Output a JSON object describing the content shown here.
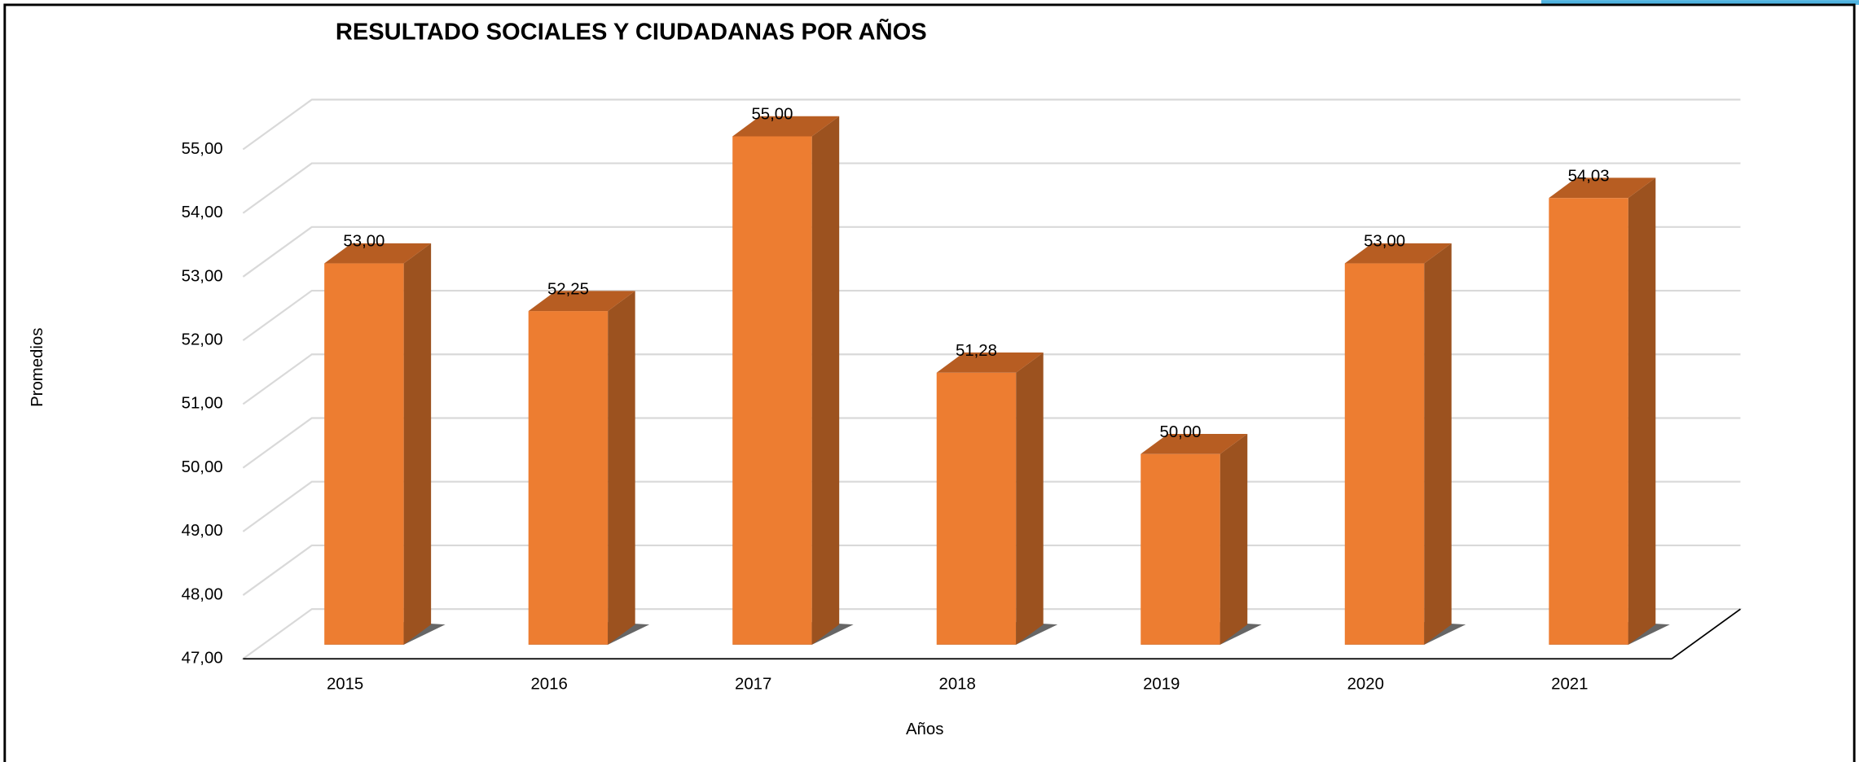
{
  "chart_data": {
    "type": "bar3d",
    "title": "RESULTADO SOCIALES Y CIUDADANAS POR AÑOS",
    "x_label": "Años",
    "y_label": "Promedios",
    "categories": [
      "2015",
      "2016",
      "2017",
      "2018",
      "2019",
      "2020",
      "2021"
    ],
    "values": [
      53.0,
      52.25,
      55.0,
      51.28,
      50.0,
      53.0,
      54.03
    ],
    "value_labels": [
      "53,00",
      "52,25",
      "55,00",
      "51,28",
      "50,00",
      "53,00",
      "54,03"
    ],
    "color": "#ed7d31",
    "ylim": [
      47,
      55
    ],
    "yticks": [
      {
        "value": 47,
        "label": "47,00"
      },
      {
        "value": 48,
        "label": "48,00"
      },
      {
        "value": 49,
        "label": "49,00"
      },
      {
        "value": 50,
        "label": "50,00"
      },
      {
        "value": 51,
        "label": "51,00"
      },
      {
        "value": 52,
        "label": "52,00"
      },
      {
        "value": 53,
        "label": "53,00"
      },
      {
        "value": 54,
        "label": "54,00"
      },
      {
        "value": 55,
        "label": "55,00"
      }
    ],
    "grid": true
  }
}
